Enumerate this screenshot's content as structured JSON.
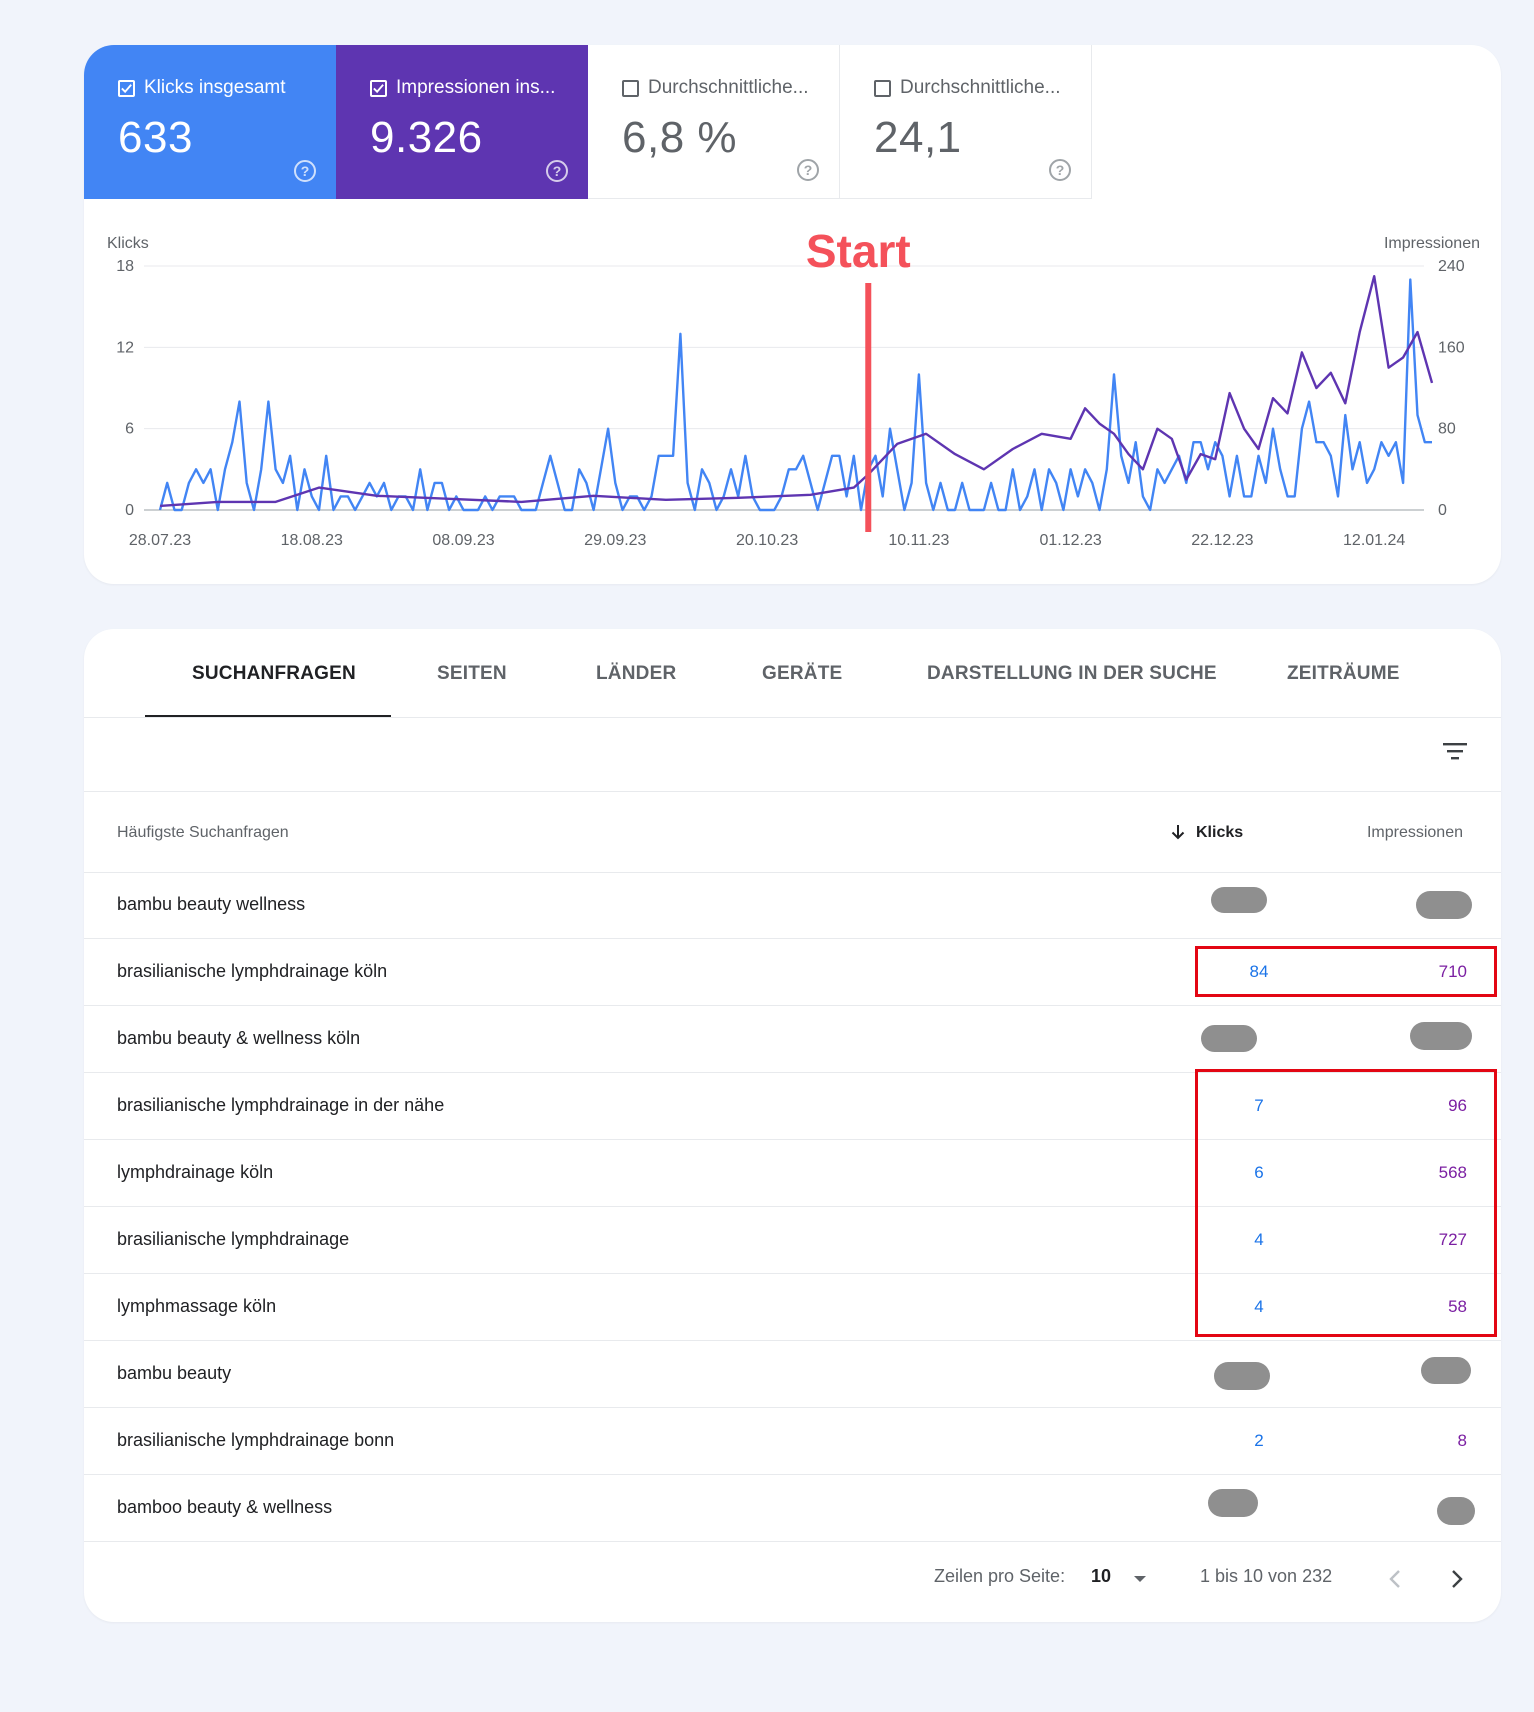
{
  "metrics": {
    "clicks": {
      "label": "Klicks insgesamt",
      "value": "633",
      "color": "#4285f4",
      "checked": true
    },
    "impressions": {
      "label": "Impressionen ins...",
      "value": "9.326",
      "color": "#5e35b1",
      "checked": true
    },
    "ctr": {
      "label": "Durchschnittliche...",
      "value": "6,8 %",
      "checked": false
    },
    "position": {
      "label": "Durchschnittliche...",
      "value": "24,1",
      "checked": false
    }
  },
  "chart_data": {
    "type": "line",
    "ylabel_left": "Klicks",
    "ylabel_right": "Impressionen",
    "y_left_ticks": [
      "18",
      "12",
      "6",
      "0"
    ],
    "y_right_ticks": [
      "240",
      "160",
      "80",
      "0"
    ],
    "ylim_left": [
      0,
      18
    ],
    "ylim_right": [
      0,
      240
    ],
    "x_tick_labels": [
      "28.07.23",
      "18.08.23",
      "08.09.23",
      "29.09.23",
      "20.10.23",
      "10.11.23",
      "01.12.23",
      "22.12.23",
      "12.01.24"
    ],
    "x_range_days": [
      0,
      176
    ],
    "annotation": {
      "label": "Start",
      "x_day": 98,
      "color": "#f4515a"
    },
    "series": [
      {
        "axis": "left",
        "color": "#4285f4",
        "points": [
          [
            0,
            0
          ],
          [
            1,
            2
          ],
          [
            2,
            0
          ],
          [
            3,
            0
          ],
          [
            4,
            2
          ],
          [
            5,
            3
          ],
          [
            6,
            2
          ],
          [
            7,
            3
          ],
          [
            8,
            0
          ],
          [
            9,
            3
          ],
          [
            10,
            5
          ],
          [
            11,
            8
          ],
          [
            12,
            2
          ],
          [
            13,
            0
          ],
          [
            14,
            3
          ],
          [
            15,
            8
          ],
          [
            16,
            3
          ],
          [
            17,
            2
          ],
          [
            18,
            4
          ],
          [
            19,
            0
          ],
          [
            20,
            3
          ],
          [
            21,
            1
          ],
          [
            22,
            0
          ],
          [
            23,
            4
          ],
          [
            24,
            0
          ],
          [
            25,
            1
          ],
          [
            26,
            1
          ],
          [
            27,
            0
          ],
          [
            28,
            1
          ],
          [
            29,
            2
          ],
          [
            30,
            1
          ],
          [
            31,
            2
          ],
          [
            32,
            0
          ],
          [
            33,
            1
          ],
          [
            34,
            1
          ],
          [
            35,
            0
          ],
          [
            36,
            3
          ],
          [
            37,
            0
          ],
          [
            38,
            2
          ],
          [
            39,
            2
          ],
          [
            40,
            0
          ],
          [
            41,
            1
          ],
          [
            42,
            0
          ],
          [
            43,
            0
          ],
          [
            44,
            0
          ],
          [
            45,
            1
          ],
          [
            46,
            0
          ],
          [
            47,
            1
          ],
          [
            48,
            1
          ],
          [
            49,
            1
          ],
          [
            50,
            0
          ],
          [
            51,
            0
          ],
          [
            52,
            0
          ],
          [
            53,
            2
          ],
          [
            54,
            4
          ],
          [
            55,
            2
          ],
          [
            56,
            0
          ],
          [
            57,
            0
          ],
          [
            58,
            3
          ],
          [
            59,
            2
          ],
          [
            60,
            0
          ],
          [
            61,
            3
          ],
          [
            62,
            6
          ],
          [
            63,
            2
          ],
          [
            64,
            0
          ],
          [
            65,
            1
          ],
          [
            66,
            1
          ],
          [
            67,
            0
          ],
          [
            68,
            1
          ],
          [
            69,
            4
          ],
          [
            70,
            4
          ],
          [
            71,
            4
          ],
          [
            72,
            13
          ],
          [
            73,
            2
          ],
          [
            74,
            0
          ],
          [
            75,
            3
          ],
          [
            76,
            2
          ],
          [
            77,
            0
          ],
          [
            78,
            1
          ],
          [
            79,
            3
          ],
          [
            80,
            1
          ],
          [
            81,
            4
          ],
          [
            82,
            1
          ],
          [
            83,
            0
          ],
          [
            84,
            0
          ],
          [
            85,
            0
          ],
          [
            86,
            1
          ],
          [
            87,
            3
          ],
          [
            88,
            3
          ],
          [
            89,
            4
          ],
          [
            90,
            2
          ],
          [
            91,
            0
          ],
          [
            92,
            2
          ],
          [
            93,
            4
          ],
          [
            94,
            4
          ],
          [
            95,
            1
          ],
          [
            96,
            4
          ],
          [
            97,
            0
          ],
          [
            98,
            3
          ],
          [
            99,
            4
          ],
          [
            100,
            1
          ],
          [
            101,
            6
          ],
          [
            102,
            3
          ],
          [
            103,
            0
          ],
          [
            104,
            2
          ],
          [
            105,
            10
          ],
          [
            106,
            2
          ],
          [
            107,
            0
          ],
          [
            108,
            2
          ],
          [
            109,
            0
          ],
          [
            110,
            0
          ],
          [
            111,
            2
          ],
          [
            112,
            0
          ],
          [
            113,
            0
          ],
          [
            114,
            0
          ],
          [
            115,
            2
          ],
          [
            116,
            0
          ],
          [
            117,
            0
          ],
          [
            118,
            3
          ],
          [
            119,
            0
          ],
          [
            120,
            1
          ],
          [
            121,
            3
          ],
          [
            122,
            0
          ],
          [
            123,
            3
          ],
          [
            124,
            2
          ],
          [
            125,
            0
          ],
          [
            126,
            3
          ],
          [
            127,
            1
          ],
          [
            128,
            3
          ],
          [
            129,
            2
          ],
          [
            130,
            0
          ],
          [
            131,
            3
          ],
          [
            132,
            10
          ],
          [
            133,
            4
          ],
          [
            134,
            2
          ],
          [
            135,
            5
          ],
          [
            136,
            1
          ],
          [
            137,
            0
          ],
          [
            138,
            3
          ],
          [
            139,
            2
          ],
          [
            140,
            3
          ],
          [
            141,
            4
          ],
          [
            142,
            2
          ],
          [
            143,
            5
          ],
          [
            144,
            5
          ],
          [
            145,
            3
          ],
          [
            146,
            5
          ],
          [
            147,
            4
          ],
          [
            148,
            1
          ],
          [
            149,
            4
          ],
          [
            150,
            1
          ],
          [
            151,
            1
          ],
          [
            152,
            4
          ],
          [
            153,
            2
          ],
          [
            154,
            6
          ],
          [
            155,
            3
          ],
          [
            156,
            1
          ],
          [
            157,
            1
          ],
          [
            158,
            6
          ],
          [
            159,
            8
          ],
          [
            160,
            5
          ],
          [
            161,
            5
          ],
          [
            162,
            4
          ],
          [
            163,
            1
          ],
          [
            164,
            7
          ],
          [
            165,
            3
          ],
          [
            166,
            5
          ],
          [
            167,
            2
          ],
          [
            168,
            3
          ],
          [
            169,
            5
          ],
          [
            170,
            4
          ],
          [
            171,
            5
          ],
          [
            172,
            2
          ],
          [
            173,
            17
          ],
          [
            174,
            7
          ],
          [
            175,
            5
          ],
          [
            176,
            5
          ]
        ]
      },
      {
        "axis": "right",
        "color": "#5e35b1",
        "points": [
          [
            0,
            4
          ],
          [
            8,
            8
          ],
          [
            16,
            8
          ],
          [
            22,
            22
          ],
          [
            30,
            14
          ],
          [
            40,
            11
          ],
          [
            50,
            8
          ],
          [
            60,
            14
          ],
          [
            70,
            10
          ],
          [
            80,
            12
          ],
          [
            90,
            15
          ],
          [
            96,
            22
          ],
          [
            98,
            35
          ],
          [
            102,
            65
          ],
          [
            106,
            75
          ],
          [
            110,
            55
          ],
          [
            114,
            40
          ],
          [
            118,
            60
          ],
          [
            122,
            75
          ],
          [
            126,
            70
          ],
          [
            128,
            100
          ],
          [
            130,
            85
          ],
          [
            132,
            75
          ],
          [
            134,
            55
          ],
          [
            136,
            40
          ],
          [
            138,
            80
          ],
          [
            140,
            70
          ],
          [
            142,
            30
          ],
          [
            144,
            55
          ],
          [
            146,
            50
          ],
          [
            148,
            115
          ],
          [
            150,
            80
          ],
          [
            152,
            60
          ],
          [
            154,
            110
          ],
          [
            156,
            95
          ],
          [
            158,
            155
          ],
          [
            160,
            120
          ],
          [
            162,
            135
          ],
          [
            164,
            105
          ],
          [
            166,
            175
          ],
          [
            168,
            230
          ],
          [
            170,
            140
          ],
          [
            172,
            150
          ],
          [
            174,
            175
          ],
          [
            176,
            125
          ]
        ]
      }
    ]
  },
  "tabs": [
    "SUCHANFRAGEN",
    "SEITEN",
    "LÄNDER",
    "GERÄTE",
    "DARSTELLUNG IN DER SUCHE",
    "ZEITRÄUME"
  ],
  "table": {
    "headers": {
      "query": "Häufigste Suchanfragen",
      "clicks": "Klicks",
      "impressions": "Impressionen"
    },
    "rows": [
      {
        "query": "bambu beauty wellness",
        "clicks": "",
        "impressions": ""
      },
      {
        "query": "brasilianische lymphdrainage köln",
        "clicks": "84",
        "impressions": "710"
      },
      {
        "query": "bambu beauty & wellness köln",
        "clicks": "",
        "impressions": ""
      },
      {
        "query": "brasilianische lymphdrainage in der nähe",
        "clicks": "7",
        "impressions": "96"
      },
      {
        "query": "lymphdrainage köln",
        "clicks": "6",
        "impressions": "568"
      },
      {
        "query": "brasilianische lymphdrainage",
        "clicks": "4",
        "impressions": "727"
      },
      {
        "query": "lymphmassage köln",
        "clicks": "4",
        "impressions": "58"
      },
      {
        "query": "bambu beauty",
        "clicks": "",
        "impressions": ""
      },
      {
        "query": "brasilianische lymphdrainage bonn",
        "clicks": "2",
        "impressions": "8"
      },
      {
        "query": "bamboo beauty & wellness",
        "clicks": "",
        "impressions": ""
      }
    ]
  },
  "footer": {
    "rows_per_page_label": "Zeilen pro Seite:",
    "rows_per_page_value": "10",
    "range_text": "1 bis 10 von 232"
  },
  "annotation_colors": {
    "highlight_box": "#e30613"
  }
}
